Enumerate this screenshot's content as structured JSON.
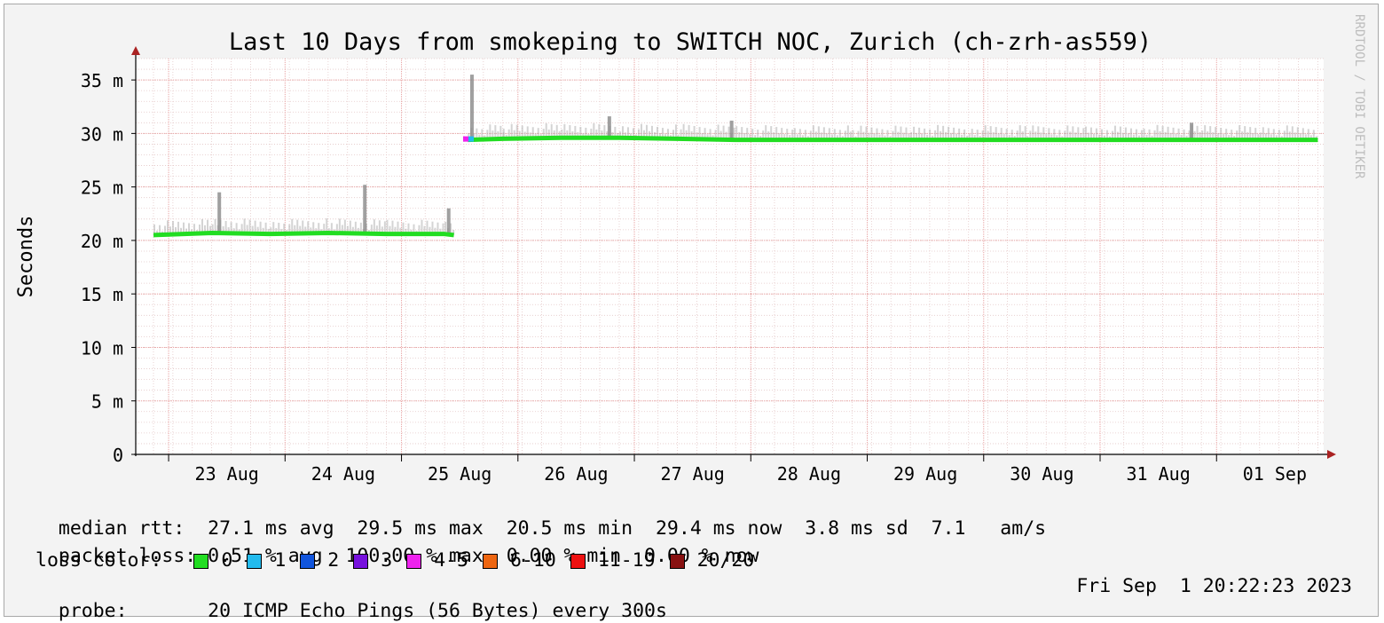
{
  "chart_data": {
    "type": "line",
    "title": "Last 10 Days from smokeping to SWITCH NOC, Zurich (ch-zrh-as559)",
    "ylabel": "Seconds",
    "watermark": "RRDTOOL / TOBI OETIKER",
    "ylim": [
      0,
      0.037
    ],
    "y_ticks": [
      {
        "value": 0,
        "label": "0"
      },
      {
        "value": 0.005,
        "label": "5 m"
      },
      {
        "value": 0.01,
        "label": "10 m"
      },
      {
        "value": 0.015,
        "label": "15 m"
      },
      {
        "value": 0.02,
        "label": "20 m"
      },
      {
        "value": 0.025,
        "label": "25 m"
      },
      {
        "value": 0.03,
        "label": "30 m"
      },
      {
        "value": 0.035,
        "label": "35 m"
      }
    ],
    "xlim_days": [
      0,
      10.05
    ],
    "x_ticks": [
      {
        "day": 0.63,
        "label": "23 Aug"
      },
      {
        "day": 1.63,
        "label": "24 Aug"
      },
      {
        "day": 2.63,
        "label": "25 Aug"
      },
      {
        "day": 3.63,
        "label": "26 Aug"
      },
      {
        "day": 4.63,
        "label": "27 Aug"
      },
      {
        "day": 5.63,
        "label": "28 Aug"
      },
      {
        "day": 6.63,
        "label": "29 Aug"
      },
      {
        "day": 7.63,
        "label": "30 Aug"
      },
      {
        "day": 8.63,
        "label": "31 Aug"
      },
      {
        "day": 9.63,
        "label": "01 Sep"
      }
    ],
    "grid": true,
    "series": [
      {
        "loss_color": "0",
        "x": [
          0.0,
          0.5,
          1.0,
          1.5,
          2.0,
          2.5,
          2.58
        ],
        "y": [
          0.0205,
          0.0207,
          0.0206,
          0.0207,
          0.0206,
          0.0206,
          0.0205
        ]
      },
      {
        "loss_color": "0",
        "x": [
          2.7,
          3.0,
          3.5,
          4.0,
          4.5,
          5.0,
          5.5,
          6.0,
          6.5,
          7.0,
          7.5,
          8.0,
          8.5,
          9.0,
          9.5,
          10.0
        ],
        "y": [
          0.0294,
          0.0295,
          0.0296,
          0.0296,
          0.0295,
          0.0294,
          0.0294,
          0.0294,
          0.0294,
          0.0294,
          0.0294,
          0.0294,
          0.0294,
          0.0294,
          0.0294,
          0.0294
        ]
      }
    ],
    "spikes": [
      {
        "x": 2.72,
        "y": 0.0355
      },
      {
        "x": 0.55,
        "y": 0.0245
      },
      {
        "x": 1.8,
        "y": 0.0252
      },
      {
        "x": 2.52,
        "y": 0.023
      },
      {
        "x": 3.9,
        "y": 0.0316
      },
      {
        "x": 4.95,
        "y": 0.0312
      },
      {
        "x": 8.9,
        "y": 0.031
      }
    ]
  },
  "stats": {
    "median_rtt": "median rtt:  27.1 ms avg  29.5 ms max  20.5 ms min  29.4 ms now  3.8 ms sd  7.1   am/s",
    "packet_loss": "packet loss: 0.51 % avg  100.00 % max  0.00 % min  0.00 % now",
    "loss_color_label": "loss color:",
    "probe": "probe:       20 ICMP Echo Pings (56 Bytes) every 300s",
    "timestamp": "Fri Sep  1 20:22:23 2023"
  },
  "loss_colors": [
    {
      "label": "0",
      "color": "#22dd22"
    },
    {
      "label": "1",
      "color": "#22bbee"
    },
    {
      "label": "2",
      "color": "#1155dd"
    },
    {
      "label": "3",
      "color": "#7711dd"
    },
    {
      "label": "4-5",
      "color": "#ee22ee"
    },
    {
      "label": "6-10",
      "color": "#ee6611"
    },
    {
      "label": "11-19",
      "color": "#ee1111"
    },
    {
      "label": "20/20",
      "color": "#881111"
    }
  ]
}
